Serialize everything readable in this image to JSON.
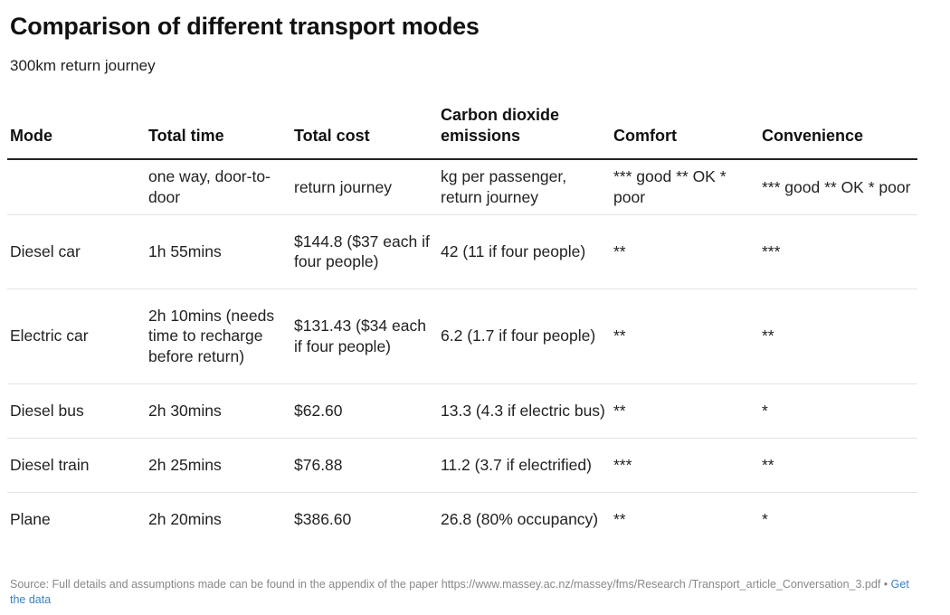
{
  "chart_data": {
    "type": "table",
    "title": "Comparison of different transport modes",
    "subtitle": "300km return journey",
    "columns": [
      "Mode",
      "Total time",
      "Total cost",
      "Carbon dioxide emissions",
      "Comfort",
      "Convenience"
    ],
    "units": [
      "",
      "one way, door-to-door",
      "return journey",
      "kg per passenger, return journey",
      "*** good ** OK * poor",
      "*** good ** OK * poor"
    ],
    "rows": [
      {
        "mode": "Diesel car",
        "time": "1h 55mins",
        "cost": "$144.8 ($37 each if four people)",
        "co2": "42 (11 if four people)",
        "comfort": "**",
        "convenience": "***"
      },
      {
        "mode": "Electric car",
        "time": "2h 10mins (needs time to recharge before return)",
        "cost": "$131.43 ($34 each if four people)",
        "co2": "6.2 (1.7 if four people)",
        "comfort": "**",
        "convenience": "**"
      },
      {
        "mode": "Diesel bus",
        "time": "2h 30mins",
        "cost": "$62.60",
        "co2": "13.3 (4.3 if electric bus)",
        "comfort": "**",
        "convenience": "*"
      },
      {
        "mode": "Diesel train",
        "time": "2h 25mins",
        "cost": "$76.88",
        "co2": "11.2 (3.7 if electrified)",
        "comfort": "***",
        "convenience": "**"
      },
      {
        "mode": "Plane",
        "time": "2h 20mins",
        "cost": "$386.60",
        "co2": "26.8 (80% occupancy)",
        "comfort": "**",
        "convenience": "*"
      }
    ]
  },
  "footer": {
    "source_text": "Source: Full details and assumptions made can be found in the appendix of the paper https://www.massey.ac.nz/massey/fms/Research /Transport_article_Conversation_3.pdf •",
    "link_label": "Get the data"
  }
}
